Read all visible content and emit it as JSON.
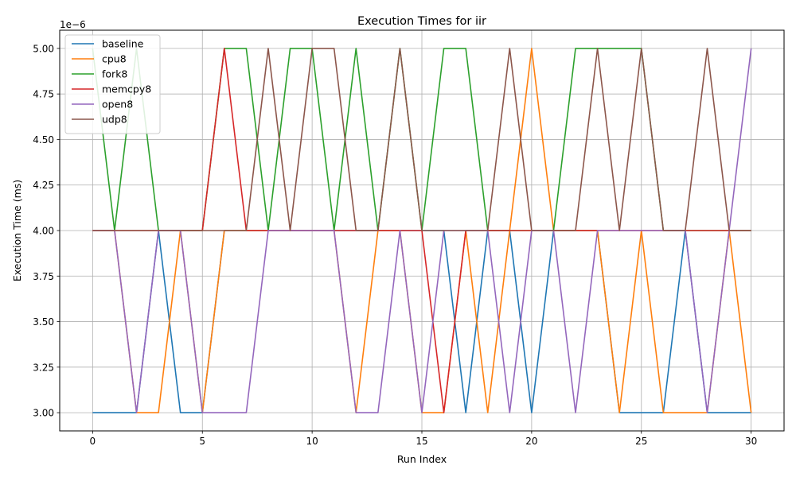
{
  "chart_data": {
    "type": "line",
    "title": "Execution Times for iir",
    "xlabel": "Run Index",
    "ylabel": "Execution Time (ms)",
    "offset_text": "1e−6",
    "xlim": [
      -1.5,
      31.5
    ],
    "ylim": [
      2.9e-06,
      5.1e-06
    ],
    "xticks": [
      0,
      5,
      10,
      15,
      20,
      25,
      30
    ],
    "xtick_labels": [
      "0",
      "5",
      "10",
      "15",
      "20",
      "25",
      "30"
    ],
    "yticks": [
      3e-06,
      3.25e-06,
      3.5e-06,
      3.75e-06,
      4e-06,
      4.25e-06,
      4.5e-06,
      4.75e-06,
      5e-06
    ],
    "ytick_labels": [
      "3.00",
      "3.25",
      "3.50",
      "3.75",
      "4.00",
      "4.25",
      "4.50",
      "4.75",
      "5.00"
    ],
    "grid": true,
    "legend_position": "upper-left",
    "x": [
      0,
      1,
      2,
      3,
      4,
      5,
      6,
      7,
      8,
      9,
      10,
      11,
      12,
      13,
      14,
      15,
      16,
      17,
      18,
      19,
      20,
      21,
      22,
      23,
      24,
      25,
      26,
      27,
      28,
      29,
      30
    ],
    "series": [
      {
        "name": "baseline",
        "color": "#1f77b4",
        "values": [
          3e-06,
          3e-06,
          3e-06,
          4e-06,
          3e-06,
          3e-06,
          4e-06,
          4e-06,
          4e-06,
          4e-06,
          4e-06,
          4e-06,
          4e-06,
          4e-06,
          4e-06,
          4e-06,
          4e-06,
          3e-06,
          4e-06,
          4e-06,
          3e-06,
          4e-06,
          4e-06,
          4e-06,
          3e-06,
          3e-06,
          3e-06,
          4e-06,
          3e-06,
          3e-06,
          3e-06
        ]
      },
      {
        "name": "cpu8",
        "color": "#ff7f0e",
        "values": [
          4e-06,
          4e-06,
          3e-06,
          3e-06,
          4e-06,
          3e-06,
          4e-06,
          4e-06,
          4e-06,
          4e-06,
          4e-06,
          4e-06,
          3e-06,
          4e-06,
          4e-06,
          3e-06,
          3e-06,
          4e-06,
          3e-06,
          4e-06,
          5e-06,
          4e-06,
          4e-06,
          4e-06,
          3e-06,
          4e-06,
          3e-06,
          3e-06,
          3e-06,
          4e-06,
          3e-06
        ]
      },
      {
        "name": "fork8",
        "color": "#2ca02c",
        "values": [
          5e-06,
          4e-06,
          5e-06,
          4e-06,
          4e-06,
          4e-06,
          5e-06,
          5e-06,
          4e-06,
          5e-06,
          5e-06,
          4e-06,
          5e-06,
          4e-06,
          5e-06,
          4e-06,
          5e-06,
          5e-06,
          4e-06,
          4e-06,
          4e-06,
          4e-06,
          5e-06,
          5e-06,
          5e-06,
          5e-06,
          4e-06,
          4e-06,
          4e-06,
          4e-06,
          4e-06
        ]
      },
      {
        "name": "memcpy8",
        "color": "#d62728",
        "values": [
          4e-06,
          4e-06,
          4e-06,
          4e-06,
          4e-06,
          4e-06,
          5e-06,
          4e-06,
          4e-06,
          4e-06,
          4e-06,
          4e-06,
          4e-06,
          4e-06,
          4e-06,
          4e-06,
          3e-06,
          4e-06,
          4e-06,
          4e-06,
          4e-06,
          4e-06,
          4e-06,
          4e-06,
          4e-06,
          4e-06,
          4e-06,
          4e-06,
          4e-06,
          4e-06,
          4e-06
        ]
      },
      {
        "name": "open8",
        "color": "#9467bd",
        "values": [
          4e-06,
          4e-06,
          3e-06,
          4e-06,
          4e-06,
          3e-06,
          3e-06,
          3e-06,
          4e-06,
          4e-06,
          4e-06,
          4e-06,
          3e-06,
          3e-06,
          4e-06,
          3e-06,
          4e-06,
          4e-06,
          4e-06,
          3e-06,
          4e-06,
          4e-06,
          3e-06,
          4e-06,
          4e-06,
          4e-06,
          4e-06,
          4e-06,
          3e-06,
          4e-06,
          5e-06
        ]
      },
      {
        "name": "udp8",
        "color": "#8c564b",
        "values": [
          4e-06,
          4e-06,
          4e-06,
          4e-06,
          4e-06,
          4e-06,
          4e-06,
          4e-06,
          5e-06,
          4e-06,
          5e-06,
          5e-06,
          4e-06,
          4e-06,
          5e-06,
          4e-06,
          4e-06,
          4e-06,
          4e-06,
          5e-06,
          4e-06,
          4e-06,
          4e-06,
          5e-06,
          4e-06,
          5e-06,
          4e-06,
          4e-06,
          5e-06,
          4e-06,
          4e-06
        ]
      }
    ]
  }
}
